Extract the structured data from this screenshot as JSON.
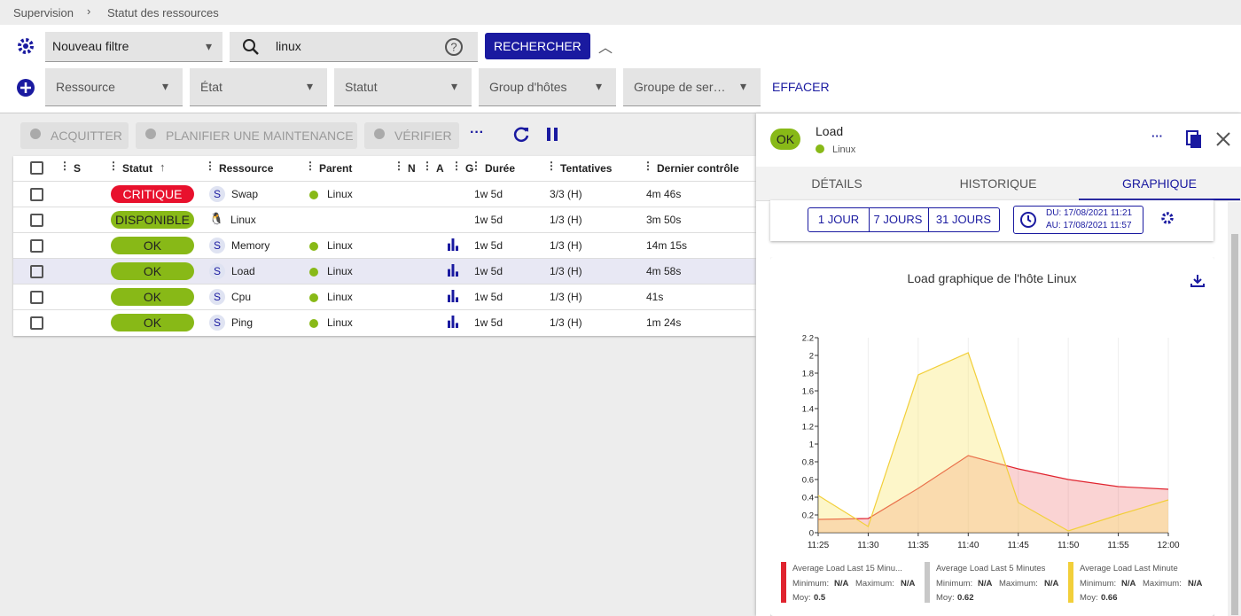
{
  "breadcrumb": [
    "Supervision",
    "Statut des ressources"
  ],
  "filter": {
    "name": "Nouveau filtre",
    "search": "linux",
    "search_button": "RECHERCHER",
    "criteria": [
      "Ressource",
      "État",
      "Statut",
      "Group d'hôtes",
      "Groupe de ser…"
    ],
    "clear": "EFFACER"
  },
  "actions": [
    "ACQUITTER",
    "PLANIFIER UNE MAINTENANCE",
    "VÉRIFIER"
  ],
  "table": {
    "columns": [
      "S",
      "Statut",
      "Ressource",
      "Parent",
      "N",
      "A",
      "G",
      "Durée",
      "Tentatives",
      "Dernier contrôle"
    ],
    "selected": 3,
    "rows": [
      {
        "status": "CRITIQUE",
        "status_color": "#e8112d",
        "type": "S",
        "resource": "Swap",
        "parent": "Linux",
        "graph": false,
        "duration": "1w 5d",
        "tries": "3/3 (H)",
        "last_check": "4m 46s"
      },
      {
        "status": "DISPONIBLE",
        "status_color": "#88b917",
        "type": null,
        "resource": "Linux",
        "parent": null,
        "graph": false,
        "duration": "1w 5d",
        "tries": "1/3 (H)",
        "last_check": "3m 50s"
      },
      {
        "status": "OK",
        "status_color": "#88b917",
        "type": "S",
        "resource": "Memory",
        "parent": "Linux",
        "graph": true,
        "duration": "1w 5d",
        "tries": "1/3 (H)",
        "last_check": "14m 15s"
      },
      {
        "status": "OK",
        "status_color": "#88b917",
        "type": "S",
        "resource": "Load",
        "parent": "Linux",
        "graph": true,
        "duration": "1w 5d",
        "tries": "1/3 (H)",
        "last_check": "4m 58s"
      },
      {
        "status": "OK",
        "status_color": "#88b917",
        "type": "S",
        "resource": "Cpu",
        "parent": "Linux",
        "graph": true,
        "duration": "1w 5d",
        "tries": "1/3 (H)",
        "last_check": "41s"
      },
      {
        "status": "OK",
        "status_color": "#88b917",
        "type": "S",
        "resource": "Ping",
        "parent": "Linux",
        "graph": true,
        "duration": "1w 5d",
        "tries": "1/3 (H)",
        "last_check": "1m 24s"
      }
    ]
  },
  "panel": {
    "status": "OK",
    "name": "Load",
    "parent": "Linux",
    "tabs": [
      "DÉTAILS",
      "HISTORIQUE",
      "GRAPHIQUE"
    ],
    "active_tab": 2,
    "periods": [
      "1 JOUR",
      "7 JOURS",
      "31 JOURS"
    ],
    "from": "DU: 17/08/2021 11:21",
    "to": "AU: 17/08/2021 11:57",
    "chart": {
      "type": "area",
      "title": "Load graphique de l'hôte Linux",
      "x": [
        "11:25",
        "11:30",
        "11:35",
        "11:40",
        "11:45",
        "11:50",
        "11:55",
        "12:00"
      ],
      "ylim": [
        0,
        2.2
      ],
      "yticks": [
        0,
        0.2,
        0.4,
        0.6,
        0.8,
        1,
        1.2,
        1.4,
        1.6,
        1.8,
        2,
        2.2
      ],
      "grid": true,
      "legend_labels": {
        "min": "Minimum:",
        "max": "Maximum:",
        "avg": "Moy:"
      },
      "series": [
        {
          "name": "Average Load Last 15 Minu...",
          "color": "#e0242f",
          "fill": "rgba(240,110,110,0.3)",
          "values": [
            0.15,
            0.16,
            0.5,
            0.87,
            0.72,
            0.6,
            0.52,
            0.49
          ],
          "minimum": "N/A",
          "maximum": "N/A",
          "average": 0.5
        },
        {
          "name": "Average Load Last 5 Minutes",
          "color": "#c8c8c8",
          "fill": "rgba(200,200,200,0.3)",
          "values": [
            null,
            null,
            null,
            null,
            null,
            null,
            null,
            null
          ],
          "minimum": "N/A",
          "maximum": "N/A",
          "average": 0.62
        },
        {
          "name": "Average Load Last Minute",
          "color": "#f2cf3a",
          "fill": "rgba(250,232,120,0.4)",
          "values": [
            0.42,
            0.07,
            1.78,
            2.03,
            0.34,
            0.02,
            0.2,
            0.37
          ],
          "minimum": "N/A",
          "maximum": "N/A",
          "average": 0.66
        }
      ]
    }
  }
}
